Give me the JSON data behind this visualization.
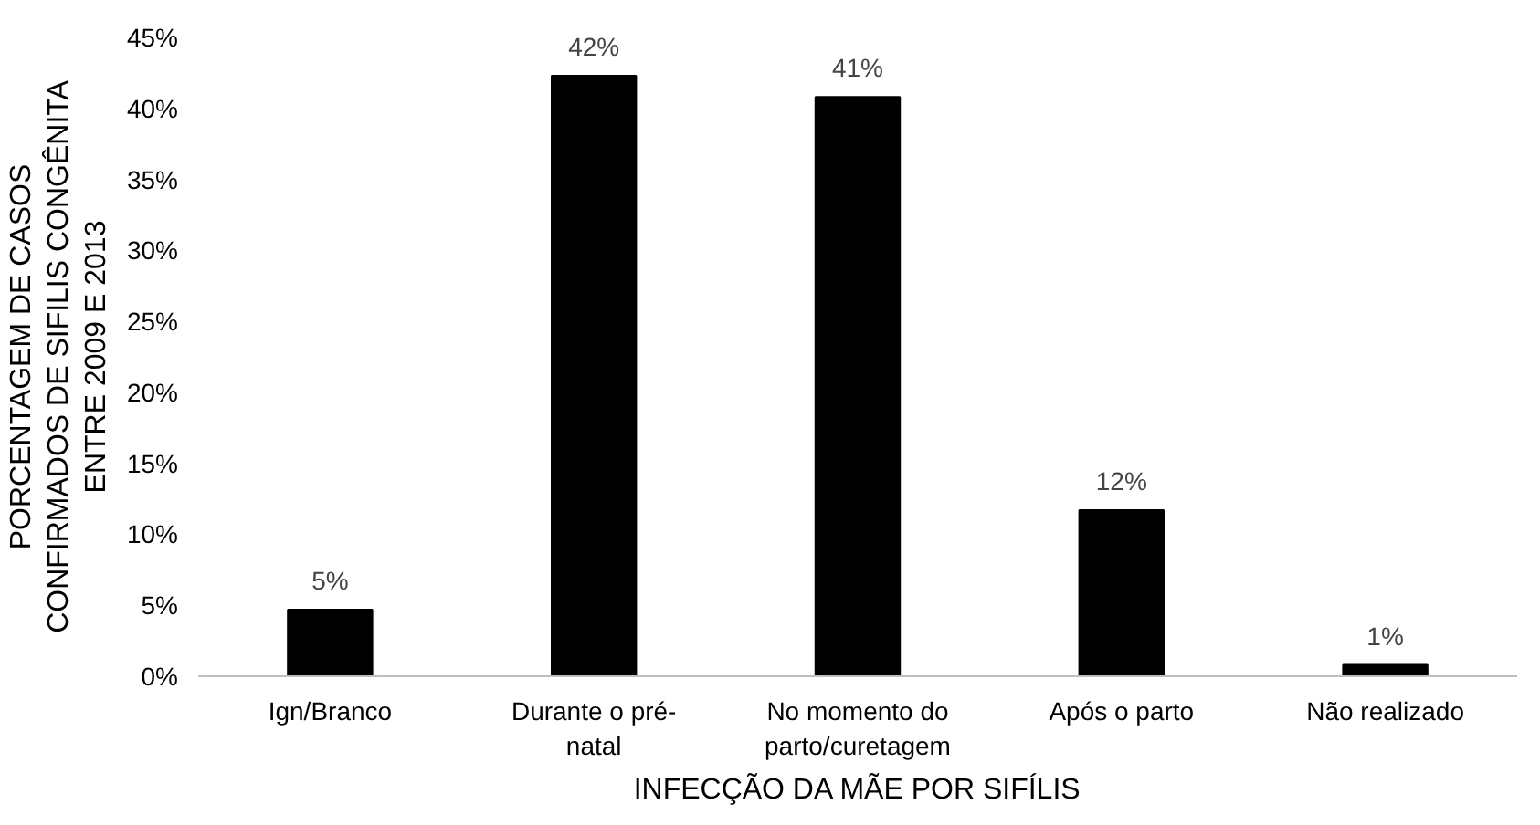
{
  "chart_data": {
    "type": "bar",
    "xlabel": "INFECÇÃO DA MÃE POR SIFÍLIS",
    "ylabel": "PORCENTAGEM DE CASOS\nCONFIRMADOS DE SIFILIS CONGÊNITA\nENTRE 2009 E 2013",
    "categories": [
      "Ign/Branco",
      "Durante o pré-\nnatal",
      "No momento do\nparto/curetagem",
      "Após o parto",
      "Não realizado"
    ],
    "values": [
      4.7,
      42.3,
      40.8,
      11.7,
      0.8
    ],
    "value_labels": [
      "5%",
      "42%",
      "41%",
      "12%",
      "1%"
    ],
    "color": "#000000",
    "ylim": [
      0,
      45
    ],
    "yticks": [
      {
        "value": 0,
        "label": "0%"
      },
      {
        "value": 5,
        "label": "5%"
      },
      {
        "value": 10,
        "label": "10%"
      },
      {
        "value": 15,
        "label": "15%"
      },
      {
        "value": 20,
        "label": "20%"
      },
      {
        "value": 25,
        "label": "25%"
      },
      {
        "value": 30,
        "label": "30%"
      },
      {
        "value": 35,
        "label": "35%"
      },
      {
        "value": 40,
        "label": "40%"
      },
      {
        "value": 45,
        "label": "45%"
      }
    ],
    "grid": false
  }
}
